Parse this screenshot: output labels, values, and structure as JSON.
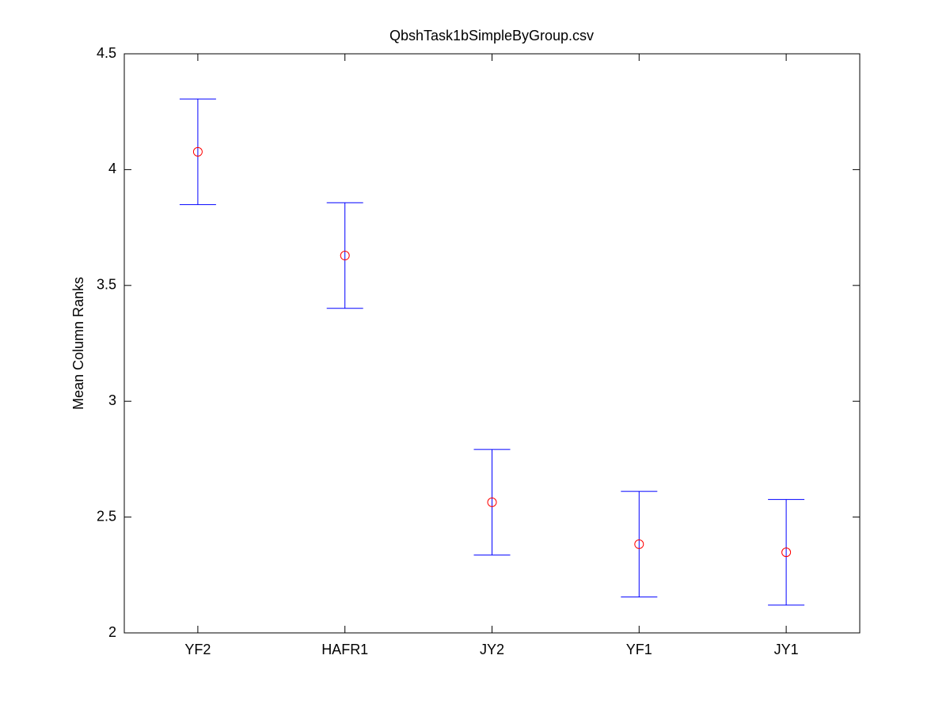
{
  "chart_data": {
    "type": "errorbar",
    "title": "QbshTask1bSimpleByGroup.csv",
    "y_label": "Mean Column Ranks",
    "categories": [
      "YF2",
      "HAFR1",
      "JY2",
      "YF1",
      "JY1"
    ],
    "values": [
      4.077,
      3.629,
      2.564,
      2.383,
      2.348
    ],
    "errors": [
      0.228,
      0.228,
      0.228,
      0.228,
      0.228
    ],
    "color": "#0000ff",
    "marker_color": "#ff0000",
    "ylim": [
      2,
      4.5
    ],
    "yticks": [
      2,
      2.5,
      3,
      3.5,
      4,
      4.5
    ],
    "grid": false
  }
}
